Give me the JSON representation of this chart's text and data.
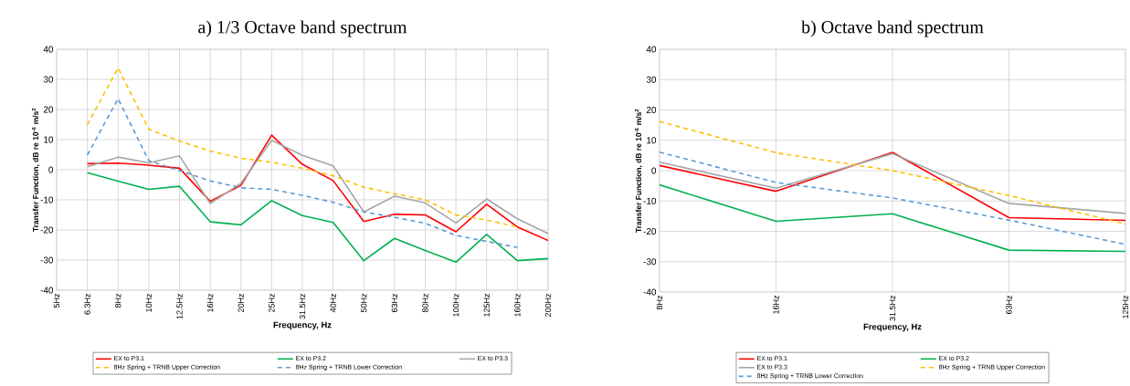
{
  "chart_data": [
    {
      "type": "line",
      "title": "a) 1/3 Octave band spectrum",
      "xlabel": "Frequency, Hz",
      "ylabel": "Transfer Function, dB re 10$^{-6}$ m/s$^{2}$",
      "categories": [
        "5Hz",
        "6.3Hz",
        "8Hz",
        "10Hz",
        "12.5Hz",
        "16Hz",
        "20Hz",
        "25Hz",
        "31.5Hz",
        "40Hz",
        "50Hz",
        "63Hz",
        "80Hz",
        "100Hz",
        "125Hz",
        "160Hz",
        "200Hz"
      ],
      "series": [
        {
          "name": "EX to P3.1",
          "color": "#ff0000",
          "line_style": "solid",
          "values": [
            null,
            2,
            2.2,
            1.5,
            0.5,
            -10.5,
            -5.2,
            11.5,
            1.8,
            -3.6,
            -17.2,
            -14.8,
            -15,
            -20.6,
            -11.5,
            -19,
            -23.5
          ]
        },
        {
          "name": "EX to P3.2",
          "color": "#00b050",
          "line_style": "solid",
          "values": [
            null,
            -1,
            -3.8,
            -6.5,
            -5.5,
            -17.3,
            -18.3,
            -10.3,
            -15.2,
            -17.5,
            -30.2,
            -22.8,
            -26.8,
            -30.7,
            -21.5,
            -30.2,
            -29.5
          ]
        },
        {
          "name": "EX to P3.3",
          "color": "#a6a6a6",
          "line_style": "solid",
          "values": [
            null,
            1,
            4.2,
            2.3,
            4.6,
            -11.2,
            -4.5,
            9.8,
            4.8,
            1.3,
            -14,
            -8.8,
            -11,
            -17.7,
            -9.7,
            -16.3,
            -21.2
          ]
        },
        {
          "name": "8Hz Spring + TRNB Upper Correction",
          "color": "#ffc000",
          "line_style": "dashed",
          "values": [
            null,
            15,
            33.8,
            13.5,
            9.5,
            6.2,
            3.8,
            2.5,
            0.5,
            -2,
            -5.8,
            -8,
            -10,
            -15,
            -16.7,
            -19,
            null
          ]
        },
        {
          "name": "8Hz Spring + TRNB Lower Correction",
          "color": "#5b9bd5",
          "line_style": "dashed",
          "values": [
            null,
            4.9,
            23.6,
            3,
            -0.3,
            -3.7,
            -6,
            -6.5,
            -8.5,
            -10.8,
            -14,
            -15.8,
            -17.8,
            -21.8,
            -23.8,
            -25.8,
            null
          ]
        }
      ],
      "ylim": [
        -40,
        40
      ],
      "yticks": [
        -40,
        -30,
        -20,
        -10,
        0,
        10,
        20,
        30,
        40
      ],
      "grid": true,
      "legend": "bottom"
    },
    {
      "type": "line",
      "title": "b) Octave band spectrum",
      "xlabel": "Frequency, Hz",
      "ylabel": "Transfer Function, dB re 10$^{-6}$ m/s$^{2}$",
      "categories": [
        "8Hz",
        "16Hz",
        "31.5Hz",
        "63Hz",
        "125Hz"
      ],
      "series": [
        {
          "name": "EX to P3.1",
          "color": "#ff0000",
          "line_style": "solid",
          "values": [
            1.7,
            -6.8,
            6,
            -15.5,
            -16.4
          ]
        },
        {
          "name": "EX to P3.2",
          "color": "#00b050",
          "line_style": "solid",
          "values": [
            -4.7,
            -16.7,
            -14.2,
            -26.2,
            -26.6
          ]
        },
        {
          "name": "EX to P3.3",
          "color": "#a6a6a6",
          "line_style": "solid",
          "values": [
            2.8,
            -5.8,
            5.6,
            -10.8,
            -14.1
          ]
        },
        {
          "name": "8Hz Spring + TRNB Upper Correction",
          "color": "#ffc000",
          "line_style": "dashed",
          "values": [
            16.2,
            5.9,
            0,
            -8.2,
            -17.6
          ]
        },
        {
          "name": "8Hz Spring + TRNB Lower Correction",
          "color": "#5b9bd5",
          "line_style": "dashed",
          "values": [
            6.1,
            -3.9,
            -9,
            -16.3,
            -24.3
          ]
        }
      ],
      "ylim": [
        -40,
        40
      ],
      "yticks": [
        -40,
        -30,
        -20,
        -10,
        0,
        10,
        20,
        30,
        40
      ],
      "grid": true,
      "legend": "bottom"
    }
  ]
}
